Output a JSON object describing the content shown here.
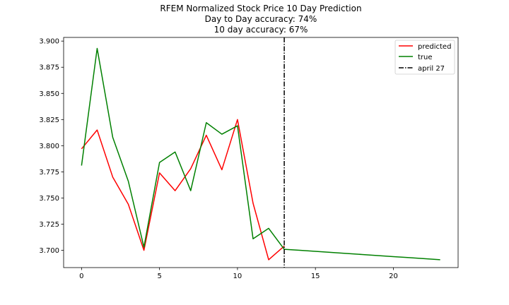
{
  "chart_data": {
    "type": "line",
    "title_lines": [
      "RFEM Normalized Stock Price 10 Day Prediction",
      "Day to Day accuracy: 74%",
      "10 day accuracy: 67%"
    ],
    "xlabel": "",
    "ylabel": "",
    "xlim": [
      -1.15,
      24.15
    ],
    "ylim": [
      3.6835,
      3.9035
    ],
    "x_ticks": [
      0,
      5,
      10,
      15,
      20
    ],
    "x_tick_labels": [
      "0",
      "5",
      "10",
      "15",
      "20"
    ],
    "y_ticks": [
      3.7,
      3.725,
      3.75,
      3.775,
      3.8,
      3.825,
      3.85,
      3.875,
      3.9
    ],
    "y_tick_labels": [
      "3.700",
      "3.725",
      "3.750",
      "3.775",
      "3.800",
      "3.825",
      "3.850",
      "3.875",
      "3.900"
    ],
    "grid": false,
    "legend_position": "top-right",
    "series": [
      {
        "name": "predicted",
        "color": "#ff0000",
        "x": [
          0,
          1,
          2,
          3,
          4,
          5,
          6,
          7,
          8,
          9,
          10,
          11,
          12,
          13
        ],
        "y": [
          3.797,
          3.815,
          3.77,
          3.744,
          3.7,
          3.774,
          3.757,
          3.778,
          3.81,
          3.777,
          3.825,
          3.745,
          3.691,
          3.704
        ]
      },
      {
        "name": "true",
        "color": "#008000",
        "x": [
          0,
          1,
          2,
          3,
          4,
          5,
          6,
          7,
          8,
          9,
          10,
          11,
          12,
          13,
          14,
          15,
          16,
          17,
          18,
          19,
          20,
          21,
          22,
          23
        ],
        "y": [
          3.781,
          3.893,
          3.808,
          3.766,
          3.703,
          3.784,
          3.794,
          3.757,
          3.822,
          3.811,
          3.819,
          3.711,
          3.721,
          3.701,
          3.7,
          3.699,
          3.698,
          3.697,
          3.696,
          3.695,
          3.694,
          3.693,
          3.692,
          3.691
        ]
      }
    ],
    "vline": {
      "name": "april 27",
      "x": 13,
      "color": "#000000",
      "style": "dash-dot"
    }
  }
}
